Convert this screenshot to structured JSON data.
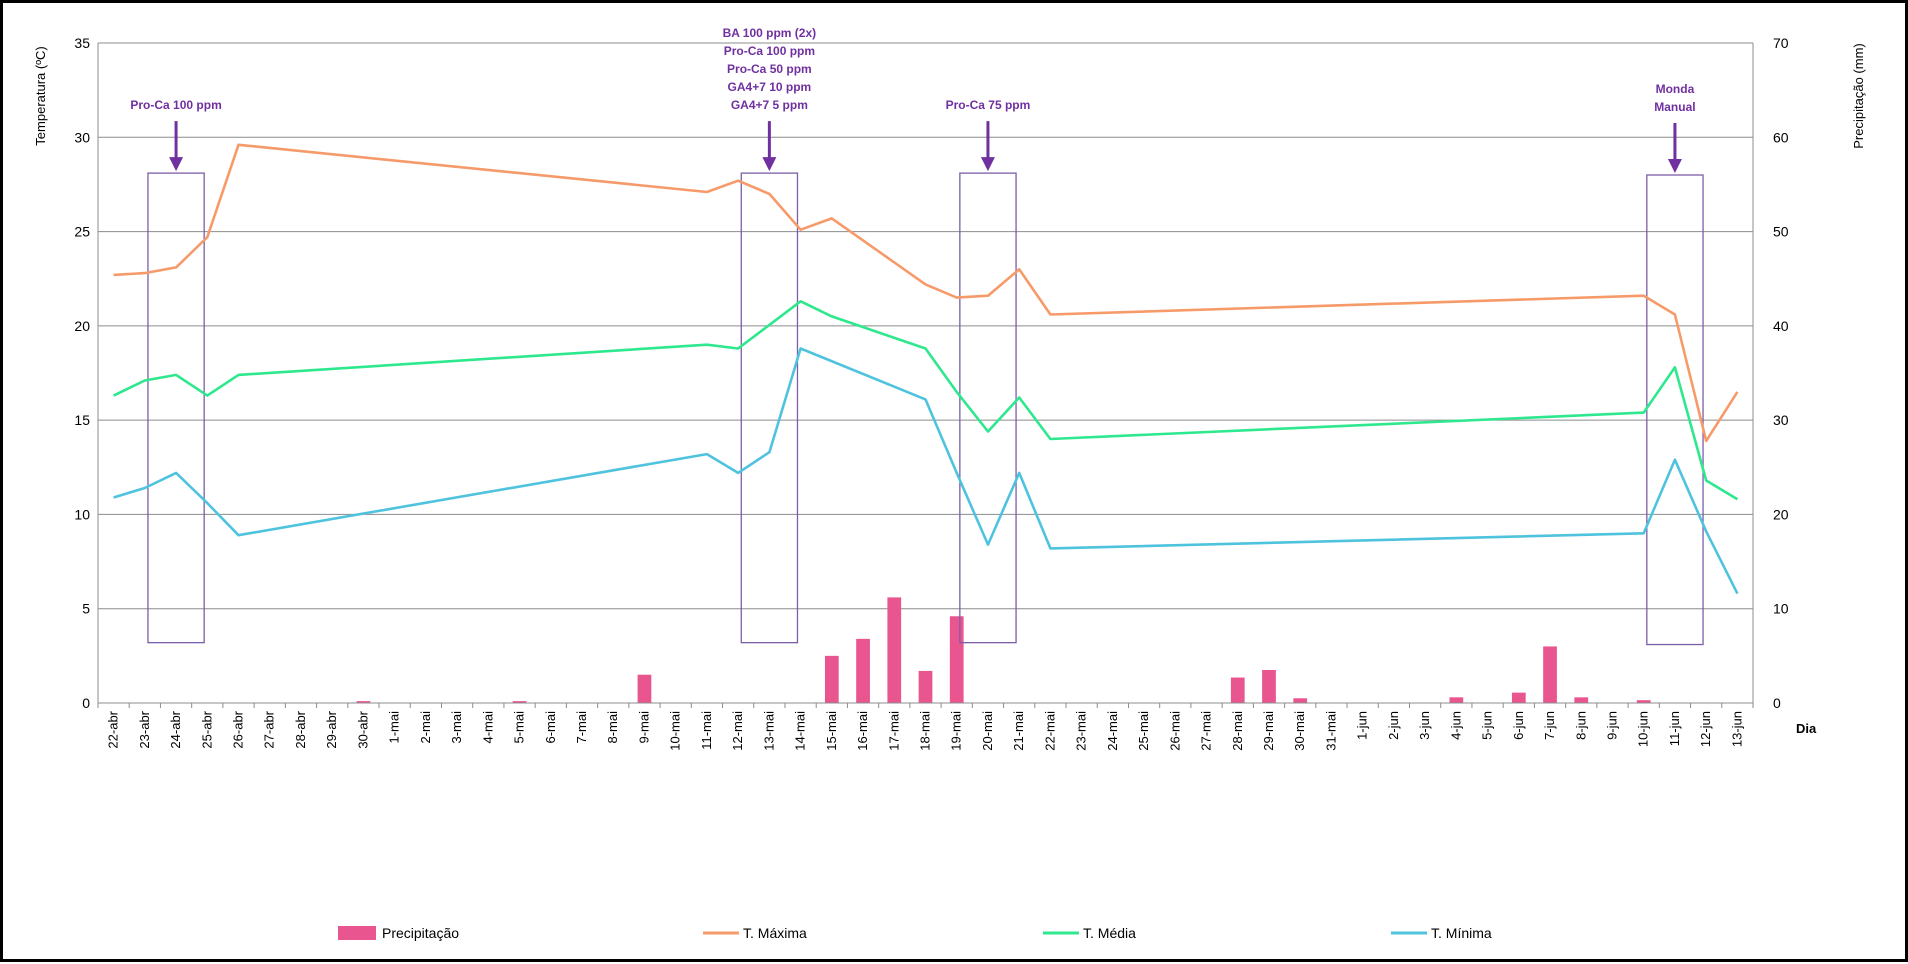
{
  "chart_data": {
    "type": "bar+line",
    "ylabel_left": "Temperatura (ºC)",
    "ylabel_right": "Precipitação (mm)",
    "xlabel": "Dia",
    "ylim_left": [
      0,
      35
    ],
    "ylim_right": [
      0,
      70
    ],
    "yticks_left": [
      "0",
      "5",
      "10",
      "15",
      "20",
      "25",
      "30",
      "35"
    ],
    "yticks_right": [
      "0",
      "10",
      "20",
      "30",
      "40",
      "50",
      "60",
      "70"
    ],
    "grid": true,
    "legend_position": "bottom",
    "categories": [
      "22-abr",
      "23-abr",
      "24-abr",
      "25-abr",
      "26-abr",
      "27-abr",
      "28-abr",
      "29-abr",
      "30-abr",
      "1-mai",
      "2-mai",
      "3-mai",
      "4-mai",
      "5-mai",
      "6-mai",
      "7-mai",
      "8-mai",
      "9-mai",
      "10-mai",
      "11-mai",
      "12-mai",
      "13-mai",
      "14-mai",
      "15-mai",
      "16-mai",
      "17-mai",
      "18-mai",
      "19-mai",
      "20-mai",
      "21-mai",
      "22-mai",
      "23-mai",
      "24-mai",
      "25-mai",
      "26-mai",
      "27-mai",
      "28-mai",
      "29-mai",
      "30-mai",
      "31-mai",
      "1-jun",
      "2-jun",
      "3-jun",
      "4-jun",
      "5-jun",
      "6-jun",
      "7-jun",
      "8-jun",
      "9-jun",
      "10-jun",
      "11-jun",
      "12-jun",
      "13-jun"
    ],
    "bars": {
      "name": "Precipitação",
      "color": "#e8558f",
      "values": [
        0,
        0,
        0,
        0,
        0,
        0,
        0,
        0,
        0.2,
        0,
        0,
        0,
        0,
        0.2,
        0,
        0,
        0,
        3.0,
        0,
        0,
        0,
        0,
        0,
        5.0,
        6.8,
        11.2,
        3.4,
        9.2,
        0,
        0,
        0,
        0,
        0,
        0,
        0,
        0,
        2.7,
        3.5,
        0.5,
        0,
        0,
        0,
        0,
        0.6,
        0,
        1.1,
        6.0,
        0.6,
        0,
        0.3,
        0,
        0,
        0
      ]
    },
    "lines": [
      {
        "name": "T. Máxima",
        "color": "#f79a6a",
        "points": [
          [
            0,
            22.7
          ],
          [
            1,
            22.8
          ],
          [
            2,
            23.1
          ],
          [
            3,
            24.7
          ],
          [
            4,
            29.6
          ],
          [
            19,
            27.1
          ],
          [
            20,
            27.7
          ],
          [
            21,
            27.0
          ],
          [
            22,
            25.1
          ],
          [
            23,
            25.7
          ],
          [
            26,
            22.2
          ],
          [
            27,
            21.5
          ],
          [
            28,
            21.6
          ],
          [
            29,
            23.0
          ],
          [
            30,
            20.6
          ],
          [
            49,
            21.6
          ],
          [
            50,
            20.6
          ],
          [
            51,
            13.9
          ],
          [
            52,
            16.5
          ]
        ]
      },
      {
        "name": "T. Média",
        "color": "#2ee88e",
        "points": [
          [
            0,
            16.3
          ],
          [
            1,
            17.1
          ],
          [
            2,
            17.4
          ],
          [
            3,
            16.3
          ],
          [
            4,
            17.4
          ],
          [
            19,
            19.0
          ],
          [
            20,
            18.8
          ],
          [
            22,
            21.3
          ],
          [
            23,
            20.5
          ],
          [
            26,
            18.8
          ],
          [
            27,
            16.5
          ],
          [
            28,
            14.4
          ],
          [
            29,
            16.2
          ],
          [
            30,
            14.0
          ],
          [
            49,
            15.4
          ],
          [
            50,
            17.8
          ],
          [
            51,
            11.8
          ],
          [
            52,
            10.8
          ]
        ]
      },
      {
        "name": "T. Mínima",
        "color": "#4fc3de",
        "points": [
          [
            0,
            10.9
          ],
          [
            1,
            11.4
          ],
          [
            2,
            12.2
          ],
          [
            3,
            10.6
          ],
          [
            4,
            8.9
          ],
          [
            19,
            13.2
          ],
          [
            20,
            12.2
          ],
          [
            21,
            13.3
          ],
          [
            22,
            18.8
          ],
          [
            26,
            16.1
          ],
          [
            27,
            12.2
          ],
          [
            28,
            8.4
          ],
          [
            29,
            12.2
          ],
          [
            30,
            8.2
          ],
          [
            49,
            9.0
          ],
          [
            50,
            12.9
          ],
          [
            51,
            9.1
          ],
          [
            52,
            5.8
          ]
        ]
      }
    ],
    "annotations": [
      {
        "lines": [
          "Pro-Ca  100 ppm"
        ],
        "arrow_x": 2,
        "box": [
          1,
          3
        ],
        "box_top": 28.1,
        "box_bottom": 3.2
      },
      {
        "lines": [
          "BA 100 ppm  (2x)",
          "Pro-Ca  100 ppm",
          "Pro-Ca 50 ppm",
          "GA4+7  10 ppm",
          "GA4+7  5 ppm"
        ],
        "arrow_x": 21,
        "box": [
          20,
          22
        ],
        "box_top": 28.1,
        "box_bottom": 3.2
      },
      {
        "lines": [
          "Pro-Ca 75 ppm"
        ],
        "arrow_x": 28,
        "box": [
          27,
          29
        ],
        "box_top": 28.1,
        "box_bottom": 3.2
      },
      {
        "lines": [
          "Monda",
          "Manual"
        ],
        "arrow_x": 50,
        "box": [
          49,
          51
        ],
        "box_top": 28.0,
        "box_bottom": 3.1
      }
    ],
    "annotation_color": "#7030a0",
    "box_color": "#7b5ea8",
    "legend": [
      "Precipitação",
      "T. Máxima",
      "T. Média",
      "T. Mínima"
    ]
  }
}
